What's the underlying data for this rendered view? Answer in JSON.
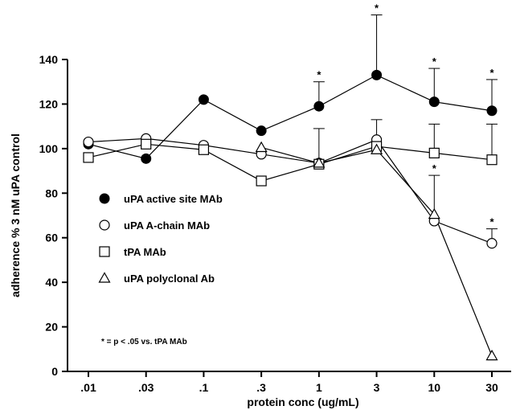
{
  "chart_data": {
    "type": "line",
    "xlabel": "protein conc (ug/mL)",
    "ylabel": "adherence % 3 nM uPA control",
    "categories": [
      ".01",
      ".03",
      ".1",
      ".3",
      "1",
      "3",
      "10",
      "30"
    ],
    "ylim": [
      0,
      140
    ],
    "yticks": [
      0,
      20,
      40,
      60,
      80,
      100,
      120,
      140
    ],
    "grid": false,
    "legend_position": "lower-left",
    "note": "* = p < .05 vs. tPA MAb",
    "series": [
      {
        "name": "uPA active site MAb",
        "marker": "filled-circle",
        "values": [
          102,
          95.5,
          122,
          108,
          119,
          133,
          121,
          117
        ],
        "error_upper": [
          null,
          null,
          null,
          null,
          130,
          160,
          136,
          131
        ],
        "significant": [
          false,
          false,
          false,
          false,
          true,
          true,
          true,
          true
        ]
      },
      {
        "name": "uPA A-chain MAb",
        "marker": "open-circle",
        "values": [
          103,
          104.5,
          101.5,
          97.5,
          93.5,
          104,
          67.5,
          57.5
        ],
        "error_upper": [
          null,
          null,
          null,
          null,
          null,
          113,
          88,
          64
        ],
        "significant": [
          false,
          false,
          false,
          false,
          false,
          false,
          true,
          true
        ]
      },
      {
        "name": "tPA MAb",
        "marker": "open-square",
        "values": [
          96,
          102,
          99.5,
          85.5,
          93,
          101,
          98,
          95
        ],
        "error_upper": [
          null,
          null,
          null,
          null,
          109,
          null,
          111,
          111
        ],
        "significant": [
          false,
          false,
          false,
          false,
          false,
          false,
          false,
          false
        ]
      },
      {
        "name": "uPA polyclonal Ab",
        "marker": "open-triangle",
        "values": [
          null,
          null,
          null,
          100.5,
          93.5,
          99.5,
          70.5,
          7
        ],
        "error_upper": [
          null,
          null,
          null,
          null,
          null,
          null,
          null,
          null
        ],
        "significant": [
          false,
          false,
          false,
          false,
          false,
          false,
          false,
          false
        ]
      }
    ]
  }
}
